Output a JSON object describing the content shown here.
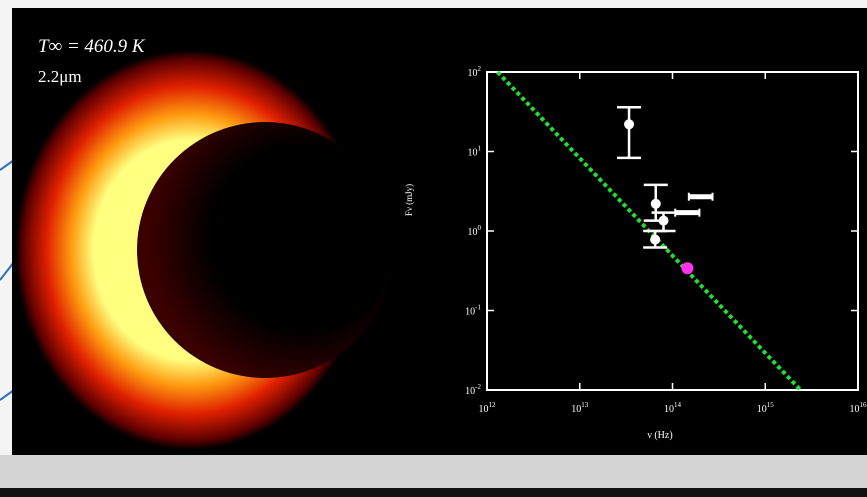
{
  "annotations": {
    "temperature": "T∞ = 460.9 K",
    "wavelength": "2.2μm"
  },
  "chart_data": {
    "type": "scatter",
    "xlog": true,
    "ylog": true,
    "xlabel": "ν (Hz)",
    "ylabel": "Fν (mJy)",
    "xlim": [
      1000000000000.0,
      1e+16
    ],
    "ylim": [
      0.01,
      100
    ],
    "xticks": [
      {
        "value": 1000000000000.0,
        "label": "10",
        "exponent": "12"
      },
      {
        "value": 10000000000000.0,
        "label": "10",
        "exponent": "13"
      },
      {
        "value": 100000000000000.0,
        "label": "10",
        "exponent": "14"
      },
      {
        "value": 1000000000000000.0,
        "label": "10",
        "exponent": "15"
      },
      {
        "value": 1e+16,
        "label": "10",
        "exponent": "16"
      }
    ],
    "yticks": [
      {
        "value": 0.01,
        "label": "10",
        "exponent": "-2"
      },
      {
        "value": 0.1,
        "label": "10",
        "exponent": "-1"
      },
      {
        "value": 1,
        "label": "10",
        "exponent": "0"
      },
      {
        "value": 10,
        "label": "10",
        "exponent": "1"
      },
      {
        "value": 100,
        "label": "10",
        "exponent": "2"
      }
    ],
    "series": [
      {
        "style": "dashed-line",
        "color": "#22dd33",
        "x": [
          1300000000000.0,
          2400000000000000.0
        ],
        "values": [
          100,
          0.01
        ]
      },
      {
        "style": "errorbar-y",
        "color": "#ffffff",
        "x": [
          34000000000000.0,
          66000000000000.0,
          80000000000000.0,
          65000000000000.0
        ],
        "values": [
          22,
          2.2,
          1.35,
          0.78
        ],
        "y_low": [
          8.3,
          1.35,
          1.0,
          0.62
        ],
        "y_high": [
          36,
          3.8,
          1.7,
          1.0
        ]
      },
      {
        "style": "errorbar-x",
        "color": "#ffffff",
        "x": [
          145000000000000.0,
          200000000000000.0
        ],
        "values": [
          1.7,
          2.7
        ],
        "x_low": [
          107000000000000.0,
          150000000000000.0
        ],
        "x_high": [
          195000000000000.0,
          270000000000000.0
        ]
      },
      {
        "style": "point",
        "color": "#ff33ee",
        "x": [
          145000000000000.0
        ],
        "values": [
          0.34
        ]
      }
    ]
  }
}
